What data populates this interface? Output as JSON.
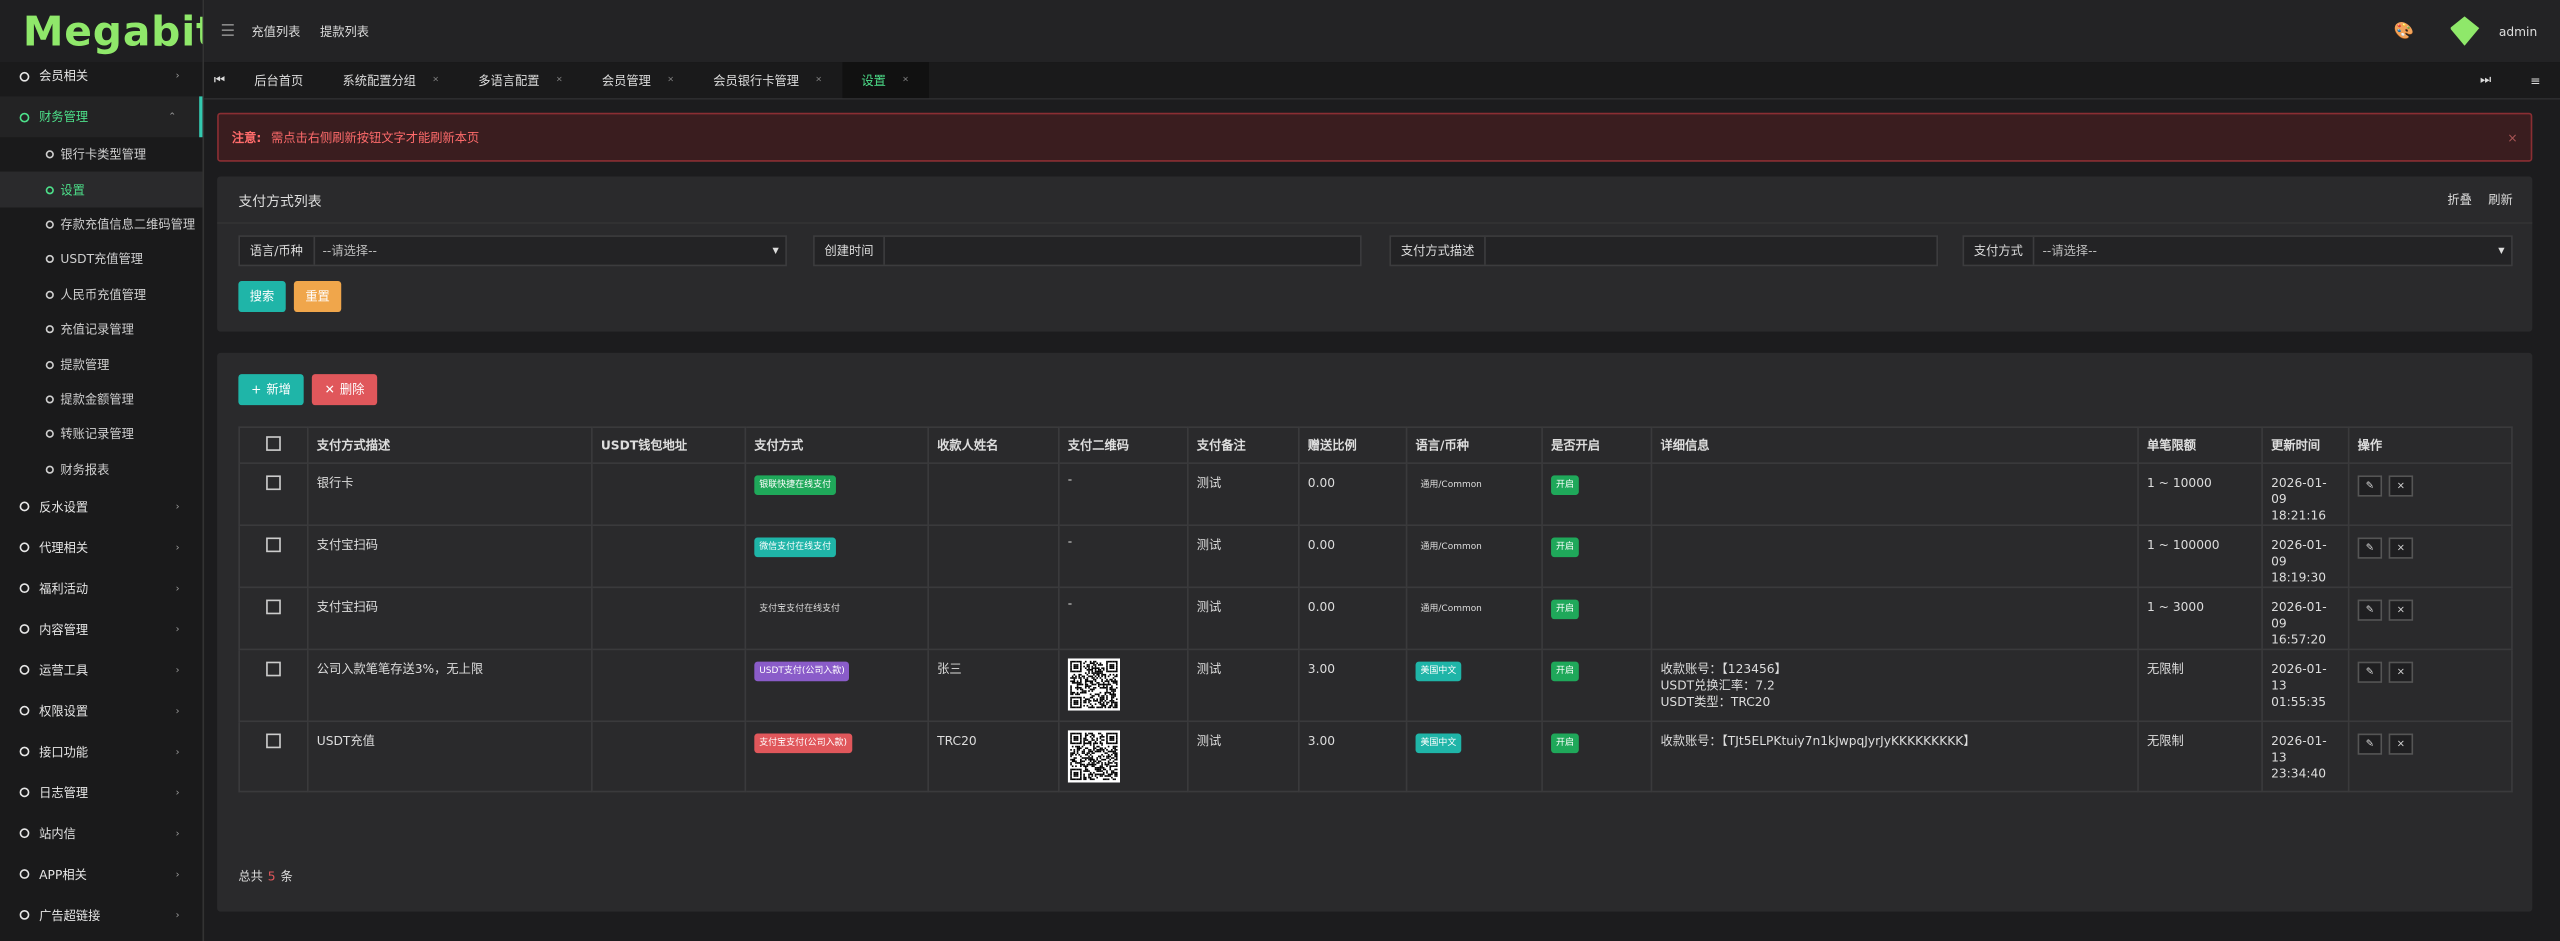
{
  "brand": "Megabit",
  "sidebar": {
    "items": [
      {
        "label": "会员相关"
      },
      {
        "label": "财务管理",
        "active": true,
        "children": [
          "银行卡类型管理",
          "设置",
          "存款充值信息二维码管理",
          "USDT充值管理",
          "人民币充值管理",
          "充值记录管理",
          "提款管理",
          "提款金额管理",
          "转账记录管理",
          "财务报表"
        ],
        "active_child": 1
      },
      {
        "label": "反水设置"
      },
      {
        "label": "代理相关"
      },
      {
        "label": "福利活动"
      },
      {
        "label": "内容管理"
      },
      {
        "label": "运营工具"
      },
      {
        "label": "权限设置"
      },
      {
        "label": "接口功能"
      },
      {
        "label": "日志管理"
      },
      {
        "label": "站内信"
      },
      {
        "label": "APP相关"
      },
      {
        "label": "广告超链接"
      }
    ]
  },
  "header": {
    "nav": [
      "充值列表",
      "提款列表"
    ],
    "user": "admin"
  },
  "tabs": {
    "items": [
      "后台首页",
      "系统配置分组",
      "多语言配置",
      "会员管理",
      "会员银行卡管理",
      "设置"
    ],
    "active": 5
  },
  "alert": {
    "label": "注意:",
    "text": "需点击右侧刷新按钮文字才能刷新本页"
  },
  "panel": {
    "title": "支付方式列表",
    "actions": [
      "折叠",
      "刷新"
    ],
    "filters": [
      {
        "label": "语言/币种",
        "placeholder": "--请选择--",
        "select": true
      },
      {
        "label": "创建时间"
      },
      {
        "label": "支付方式描述"
      },
      {
        "label": "支付方式",
        "placeholder": "--请选择--",
        "select": true
      }
    ],
    "buttons": [
      "搜索",
      "重置"
    ]
  },
  "table": {
    "toolbar": [
      "新增",
      "删除"
    ],
    "columns": [
      "支付方式描述",
      "USDT钱包地址",
      "支付方式",
      "收款人姓名",
      "支付二维码",
      "支付备注",
      "赠送比例",
      "语言/币种",
      "是否开启",
      "详细信息",
      "单笔限额",
      "更新时间",
      "操作"
    ],
    "rows": [
      {
        "desc": "银行卡",
        "method": "银联快捷在线支付",
        "method_color": "#1fa85a",
        "qr_text": "-",
        "remark": "测试",
        "ratio": "0.00",
        "lang": "通用/Common",
        "enabled": "开启",
        "limit": "1 ~ 10000",
        "updated": "2026-01-09 18:21:16"
      },
      {
        "desc": "支付宝扫码",
        "method": "微信支付在线支付",
        "method_color": "#1fb5a8",
        "qr_text": "-",
        "remark": "测试",
        "ratio": "0.00",
        "lang": "通用/Common",
        "enabled": "开启",
        "limit": "1 ~ 100000",
        "updated": "2026-01-09 18:19:30"
      },
      {
        "desc": "支付宝扫码",
        "method": "支付宝支付在线支付",
        "qr_text": "-",
        "remark": "测试",
        "ratio": "0.00",
        "lang": "通用/Common",
        "enabled": "开启",
        "limit": "1 ~ 3000",
        "updated": "2026-01-09 16:57:20"
      },
      {
        "desc": "公司入款笔笔存送3%，无上限",
        "method": "USDT支付(公司入款)",
        "method_color": "#8a5cc9",
        "payee": "张三",
        "qr": true,
        "remark": "测试",
        "ratio": "3.00",
        "lang": "美国中文",
        "lang_color": "#1fb5a8",
        "enabled": "开启",
        "details": [
          "收款账号：【123456】",
          "USDT兑换汇率：7.2",
          "USDT类型：TRC20"
        ],
        "limit": "无限制",
        "updated": "2026-01-13 01:55:35"
      },
      {
        "desc": "USDT充值",
        "method": "支付宝支付(公司入款)",
        "method_color": "#e0575b",
        "payee": "TRC20",
        "qr": true,
        "remark": "测试",
        "ratio": "3.00",
        "lang": "美国中文",
        "lang_color": "#1fb5a8",
        "enabled": "开启",
        "details": [
          "收款账号：【TJt5ELPKtuiy7n1kJwpqJyrJyKKKKKKKKK】"
        ],
        "limit": "无限制",
        "updated": "2026-01-13 23:34:40"
      }
    ]
  },
  "footer": {
    "prefix": "总共",
    "count": "5",
    "suffix": "条"
  }
}
